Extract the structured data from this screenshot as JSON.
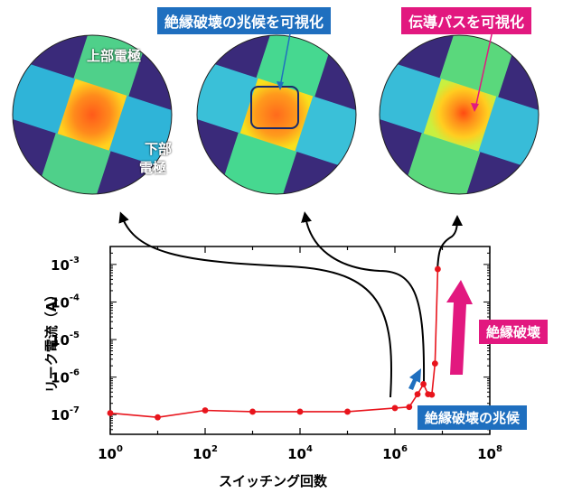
{
  "callouts": {
    "precursor_label": "絶縁破壊の兆候を可視化",
    "path_label": "伝導パスを可視化",
    "top_electrode": "上部電極",
    "bottom_electrode_1": "下部",
    "bottom_electrode_2": "電極"
  },
  "annotations": {
    "breakdown": "絶縁破壊",
    "precursor": "絶縁破壊の兆候"
  },
  "colors": {
    "blue_label": "#1f6fbf",
    "magenta_label": "#e2187f",
    "series": "#e8141c"
  },
  "chart_data": {
    "type": "line",
    "xscale": "log",
    "yscale": "log",
    "xlim": [
      1,
      100000000
    ],
    "ylim": [
      3e-08,
      0.003
    ],
    "xlabel": "スイッチング回数",
    "ylabel": "リーク電流（A）",
    "xticks": [
      {
        "value": 1,
        "base": "10",
        "exp": "0"
      },
      {
        "value": 100,
        "base": "10",
        "exp": "2"
      },
      {
        "value": 10000,
        "base": "10",
        "exp": "4"
      },
      {
        "value": 1000000,
        "base": "10",
        "exp": "6"
      },
      {
        "value": 100000000,
        "base": "10",
        "exp": "8"
      }
    ],
    "yticks": [
      {
        "value": 1e-07,
        "base": "10",
        "exp": "-7"
      },
      {
        "value": 1e-06,
        "base": "10",
        "exp": "-6"
      },
      {
        "value": 1e-05,
        "base": "10",
        "exp": "-5"
      },
      {
        "value": 0.0001,
        "base": "10",
        "exp": "-4"
      },
      {
        "value": 0.001,
        "base": "10",
        "exp": "-3"
      }
    ],
    "series": [
      {
        "x": [
          1,
          10,
          100,
          1000,
          10000,
          100000,
          1000000,
          2000000,
          3000000,
          4000000,
          5000000,
          6000000,
          7000000,
          8000000
        ],
        "y": [
          1.1e-07,
          8.5e-08,
          1.3e-07,
          1.2e-07,
          1.2e-07,
          1.2e-07,
          1.5e-07,
          1.6e-07,
          3.5e-07,
          6.5e-07,
          3.5e-07,
          3.4e-07,
          2.3e-06,
          0.00075
        ]
      }
    ]
  }
}
